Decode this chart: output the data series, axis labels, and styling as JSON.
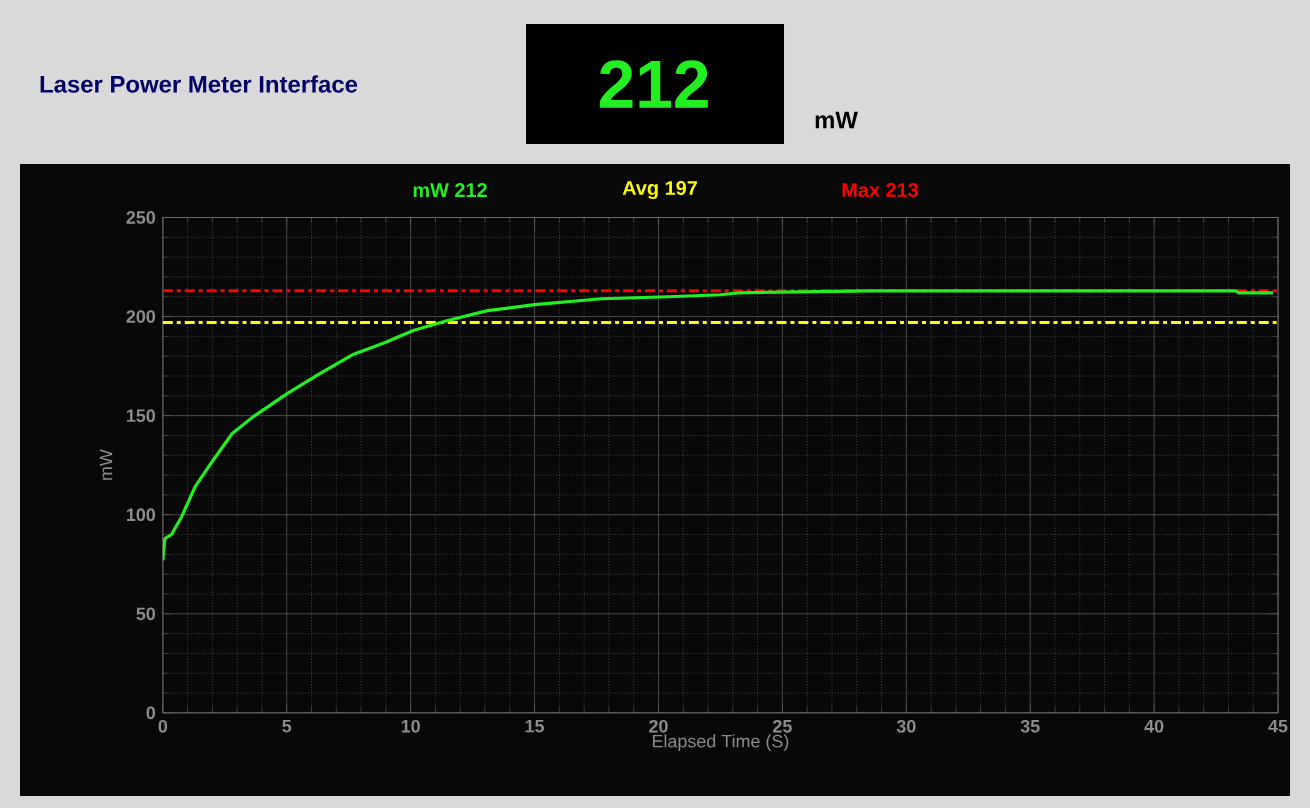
{
  "chart_data": {
    "type": "line",
    "title": "Laser Power Meter Interface",
    "xlabel": "Elapsed Time (S)",
    "ylabel": "mW",
    "annotations": [
      "mW 212",
      "212",
      "mW"
    ],
    "series": [
      {
        "color": "#22ee22",
        "x": [
          0,
          0.08,
          0.35,
          0.76,
          1.3,
          2.0,
          2.8,
          3.6,
          5.0,
          6.3,
          7.7,
          9.0,
          10.1,
          11.5,
          13.1,
          15.0,
          17.7,
          20.4,
          22.5,
          23.3,
          28.5,
          43.3,
          43.4,
          44.8
        ],
        "values": [
          77,
          88,
          90,
          99,
          114,
          127,
          141,
          149,
          161,
          171,
          181,
          187,
          193,
          198,
          203,
          206,
          209,
          210,
          211,
          212,
          213,
          213,
          212,
          212
        ]
      }
    ],
    "ref_lines": [
      {
        "axis": "y",
        "value": 197,
        "label": "Avg 197",
        "color": "#ffff00"
      },
      {
        "axis": "y",
        "value": 213,
        "label": "Max 213",
        "color": "#ff0000"
      }
    ],
    "xlim": [
      0,
      45
    ],
    "xticks": [
      0,
      5,
      10,
      15,
      20,
      25,
      30,
      35,
      40,
      45
    ],
    "ylim": [
      0,
      250
    ],
    "yticks": [
      0,
      50,
      100,
      150,
      200,
      250
    ],
    "grid": true
  }
}
